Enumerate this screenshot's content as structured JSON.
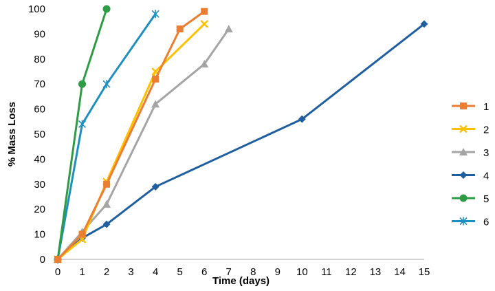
{
  "chart_data": {
    "type": "line",
    "title": "",
    "xlabel": "Time (days)",
    "ylabel": "% Mass Loss",
    "xlim": [
      0,
      15
    ],
    "ylim": [
      0,
      100
    ],
    "xticks": [
      "0",
      "1",
      "2",
      "3",
      "4",
      "5",
      "6",
      "7",
      "8",
      "9",
      "10",
      "11",
      "12",
      "13",
      "14",
      "15"
    ],
    "yticks": [
      "0",
      "10",
      "20",
      "30",
      "40",
      "50",
      "60",
      "70",
      "80",
      "90",
      "100"
    ],
    "grid": false,
    "legend_position": "right",
    "series": [
      {
        "name": "1",
        "color": "#ED7D31",
        "marker": "square",
        "x": [
          0,
          1,
          2,
          4,
          5,
          6
        ],
        "y": [
          0,
          10,
          30,
          72,
          92,
          99
        ]
      },
      {
        "name": "2",
        "color": "#FFC000",
        "marker": "x",
        "x": [
          0,
          1,
          2,
          4,
          6
        ],
        "y": [
          0,
          8,
          31,
          75,
          94
        ]
      },
      {
        "name": "3",
        "color": "#A5A5A5",
        "marker": "triangle",
        "x": [
          0,
          1,
          2,
          4,
          6,
          7
        ],
        "y": [
          0,
          11,
          22,
          62,
          78,
          92
        ]
      },
      {
        "name": "4",
        "color": "#1F5FA0",
        "marker": "diamond",
        "x": [
          0,
          1,
          2,
          4,
          10,
          15
        ],
        "y": [
          0,
          8.5,
          14,
          29,
          56,
          94
        ]
      },
      {
        "name": "5",
        "color": "#2E9B45",
        "marker": "circle",
        "x": [
          0,
          1,
          2
        ],
        "y": [
          0,
          70,
          100
        ]
      },
      {
        "name": "6",
        "color": "#1F8FC0",
        "marker": "star",
        "x": [
          0,
          1,
          2,
          4
        ],
        "y": [
          0,
          54,
          70,
          98
        ]
      }
    ]
  }
}
